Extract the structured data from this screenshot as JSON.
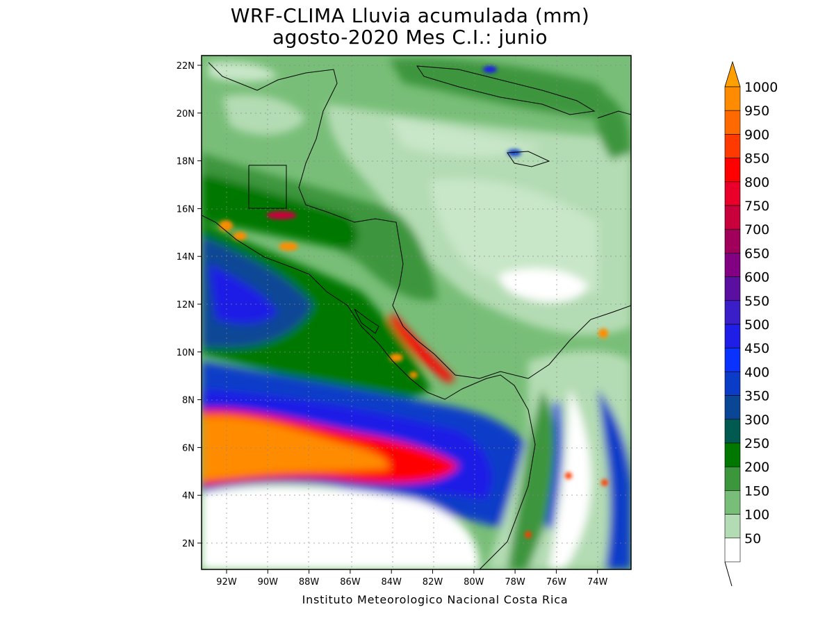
{
  "title_line1": "WRF-CLIMA Lluvia acumulada (mm)",
  "title_line2": "agosto-2020 Mes C.I.: junio",
  "credit": "Instituto Meteorologico Nacional Costa Rica",
  "lat_ticks": [
    "22N",
    "20N",
    "18N",
    "16N",
    "14N",
    "12N",
    "10N",
    "8N",
    "6N",
    "4N",
    "2N"
  ],
  "lon_ticks": [
    "92W",
    "90W",
    "88W",
    "86W",
    "84W",
    "82W",
    "80W",
    "78W",
    "76W",
    "74W"
  ],
  "colorbar": {
    "labels": [
      "1000",
      "950",
      "900",
      "850",
      "800",
      "750",
      "700",
      "650",
      "600",
      "550",
      "500",
      "450",
      "400",
      "350",
      "300",
      "250",
      "200",
      "150",
      "100",
      "50"
    ],
    "colors": [
      "#ff8c00",
      "#ff6a00",
      "#ff3a00",
      "#ff0000",
      "#e8002a",
      "#c8003c",
      "#a0005a",
      "#820082",
      "#5a0fa0",
      "#3a1ec8",
      "#1e1ee6",
      "#0a32ff",
      "#0a3cc8",
      "#0a4696",
      "#005a50",
      "#007800",
      "#3c963c",
      "#78be78",
      "#b4dcb4",
      "#ffffff"
    ],
    "overflow_color": "#ffa000"
  }
}
